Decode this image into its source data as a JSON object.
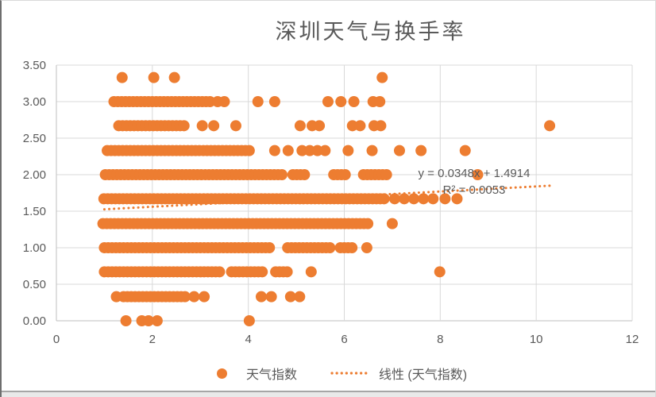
{
  "chart_data": {
    "type": "scatter",
    "title": "深圳天气与换手率",
    "xlabel": "",
    "ylabel": "",
    "xlim": [
      0,
      12
    ],
    "ylim": [
      0,
      3.5
    ],
    "grid": true,
    "legend_position": "bottom",
    "x_ticks": [
      {
        "value": 0,
        "label": "0"
      },
      {
        "value": 2,
        "label": "2"
      },
      {
        "value": 4,
        "label": "4"
      },
      {
        "value": 6,
        "label": "6"
      },
      {
        "value": 8,
        "label": "8"
      },
      {
        "value": 10,
        "label": "10"
      },
      {
        "value": 12,
        "label": "12"
      }
    ],
    "y_ticks": [
      {
        "value": 0,
        "label": "0.00"
      },
      {
        "value": 0.5,
        "label": "0.50"
      },
      {
        "value": 1,
        "label": "1.00"
      },
      {
        "value": 1.5,
        "label": "1.50"
      },
      {
        "value": 2,
        "label": "2.00"
      },
      {
        "value": 2.5,
        "label": "2.50"
      },
      {
        "value": 3,
        "label": "3.00"
      },
      {
        "value": 3.5,
        "label": "3.50"
      }
    ],
    "series": [
      {
        "name": "天气指数",
        "marker_color": "#ED7D31",
        "marker_radius_px": 7,
        "range_step": 0.08,
        "rows": [
          {
            "y": 0,
            "x_ranges": [],
            "x_points": [
              1.45,
              1.78,
              1.92,
              2.1,
              4.02
            ]
          },
          {
            "y": 0.33,
            "x_ranges": [
              [
                1.4,
                2.72
              ]
            ],
            "x_points": [
              1.25,
              2.87,
              3.08,
              4.27,
              4.48,
              4.88,
              5.07
            ]
          },
          {
            "y": 0.67,
            "x_ranges": [
              [
                1.0,
                3.4
              ],
              [
                3.65,
                4.35
              ],
              [
                4.57,
                4.87
              ]
            ],
            "x_points": [
              5.31,
              7.99
            ]
          },
          {
            "y": 1,
            "x_ranges": [
              [
                1.0,
                4.45
              ],
              [
                4.82,
                5.75
              ],
              [
                5.92,
                6.18
              ]
            ],
            "x_points": [
              6.47
            ]
          },
          {
            "y": 1.33,
            "x_ranges": [
              [
                0.97,
                6.55
              ]
            ],
            "x_points": [
              7.0
            ]
          },
          {
            "y": 1.67,
            "x_ranges": [
              [
                0.99,
                6.85
              ]
            ],
            "x_points": [
              7.05,
              7.25,
              7.45,
              7.65,
              7.85,
              8.1,
              8.35
            ]
          },
          {
            "y": 2,
            "x_ranges": [
              [
                1.02,
                4.72
              ],
              [
                4.93,
                5.22
              ],
              [
                5.78,
                6.02
              ],
              [
                6.4,
                6.88
              ]
            ],
            "x_points": [
              8.78
            ]
          },
          {
            "y": 2.33,
            "x_ranges": [
              [
                1.06,
                4.02
              ]
            ],
            "x_points": [
              4.55,
              4.83,
              5.12,
              5.28,
              5.44,
              5.6,
              6.08,
              6.58,
              7.15,
              7.6,
              8.52
            ]
          },
          {
            "y": 2.67,
            "x_ranges": [
              [
                1.3,
                2.7
              ]
            ],
            "x_points": [
              3.04,
              3.28,
              3.74,
              5.08,
              5.33,
              5.48,
              6.17,
              6.33,
              6.62,
              6.76,
              10.28
            ]
          },
          {
            "y": 3,
            "x_ranges": [
              [
                1.2,
                3.25
              ]
            ],
            "x_points": [
              3.36,
              3.5,
              4.2,
              4.55,
              5.66,
              5.93,
              6.2,
              6.6,
              6.74
            ]
          },
          {
            "y": 3.33,
            "x_ranges": [],
            "x_points": [
              1.37,
              2.03,
              2.46,
              6.79
            ]
          }
        ]
      }
    ],
    "trendline": {
      "name": "线性 (天气指数)",
      "equation": "y = 0.0348x + 1.4914",
      "r_squared": "R² = 0.0053",
      "slope": 0.0348,
      "intercept": 1.4914,
      "x_start": 1.0,
      "x_end": 10.3,
      "style": "dotted",
      "color": "#ED7D31"
    }
  },
  "colors": {
    "marker": "#ED7D31",
    "trendline": "#ED7D31",
    "gridline": "#D9D9D9",
    "axis_line": "#BFBFBF",
    "text": "#595959"
  }
}
